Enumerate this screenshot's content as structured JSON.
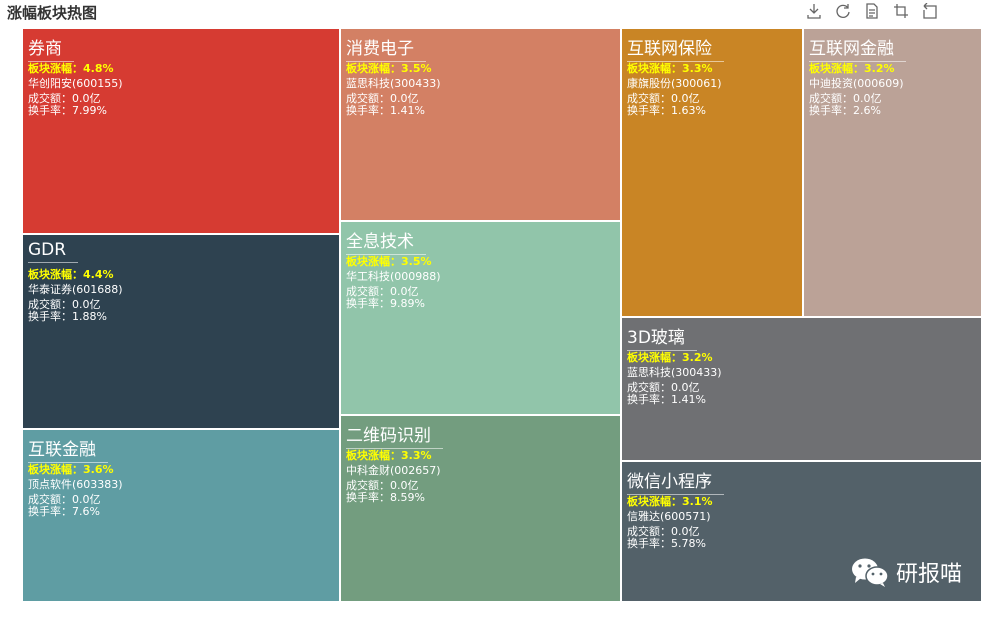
{
  "title": "涨幅板块热图",
  "toolbox": [
    {
      "name": "save-image-icon"
    },
    {
      "name": "restore-icon"
    },
    {
      "name": "data-view-icon"
    },
    {
      "name": "crop-zoom-icon"
    },
    {
      "name": "zoom-reset-icon"
    }
  ],
  "labels": {
    "change_prefix": "板块涨幅：",
    "volume_prefix": "成交额：",
    "turnover_prefix": "换手率："
  },
  "watermark": "研报喵",
  "chart_data": {
    "type": "treemap",
    "title": "涨幅板块热图",
    "sectors": [
      {
        "name": "券商",
        "change": "4.8%",
        "stock": "华创阳安(600155)",
        "volume": "0.0亿",
        "turnover": "7.99%",
        "color": "#d63b32"
      },
      {
        "name": "GDR",
        "change": "4.4%",
        "stock": "华泰证券(601688)",
        "volume": "0.0亿",
        "turnover": "1.88%",
        "color": "#2e4250"
      },
      {
        "name": "互联金融",
        "change": "3.6%",
        "stock": "顶点软件(603383)",
        "volume": "0.0亿",
        "turnover": "7.6%",
        "color": "#5f9da3"
      },
      {
        "name": "消费电子",
        "change": "3.5%",
        "stock": "蓝思科技(300433)",
        "volume": "0.0亿",
        "turnover": "1.41%",
        "color": "#d38064"
      },
      {
        "name": "全息技术",
        "change": "3.5%",
        "stock": "华工科技(000988)",
        "volume": "0.0亿",
        "turnover": "9.89%",
        "color": "#91c5aa"
      },
      {
        "name": "二维码识别",
        "change": "3.3%",
        "stock": "中科金财(002657)",
        "volume": "0.0亿",
        "turnover": "8.59%",
        "color": "#739d7f"
      },
      {
        "name": "互联网保险",
        "change": "3.3%",
        "stock": "康旗股份(300061)",
        "volume": "0.0亿",
        "turnover": "1.63%",
        "color": "#c98525"
      },
      {
        "name": "互联网金融",
        "change": "3.2%",
        "stock": "中迪投资(000609)",
        "volume": "0.0亿",
        "turnover": "2.6%",
        "color": "#bba297"
      },
      {
        "name": "3D玻璃",
        "change": "3.2%",
        "stock": "蓝思科技(300433)",
        "volume": "0.0亿",
        "turnover": "1.41%",
        "color": "#6f7073"
      },
      {
        "name": "微信小程序",
        "change": "3.1%",
        "stock": "信雅达(600571)",
        "volume": "0.0亿",
        "turnover": "5.78%",
        "color": "#536169"
      }
    ]
  }
}
